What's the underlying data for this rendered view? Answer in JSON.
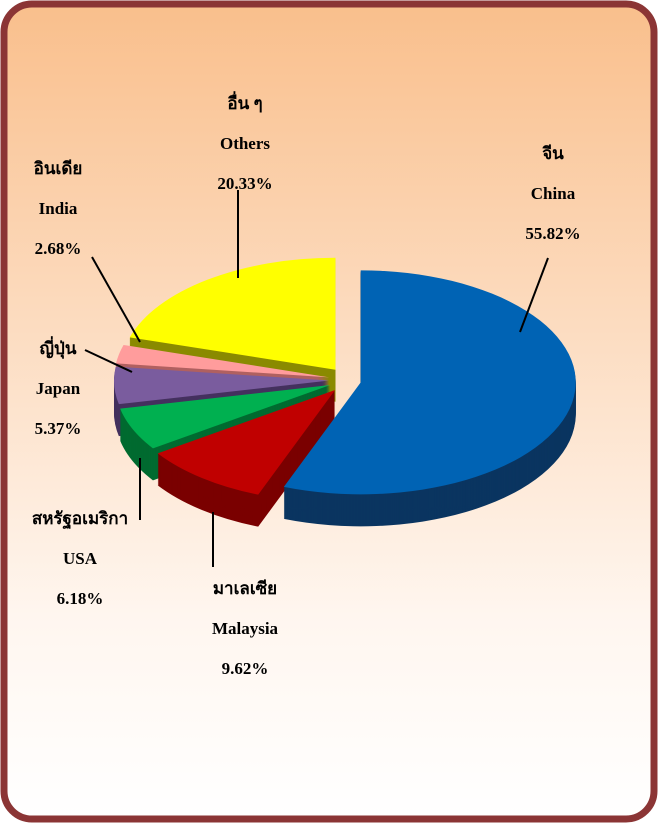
{
  "chart_data": {
    "type": "pie",
    "categories_thai": [
      "จีน",
      "มาเลเซีย",
      "สหรัฐอเมริกา",
      "ญี่ปุ่น",
      "อินเดีย",
      "อื่น ๆ"
    ],
    "categories": [
      "China",
      "Malaysia",
      "USA",
      "Japan",
      "India",
      "Others"
    ],
    "values": [
      55.82,
      9.62,
      6.18,
      5.37,
      2.68,
      20.33
    ],
    "value_labels": [
      "55.82%",
      "9.62%",
      "6.18%",
      "5.37%",
      "2.68%",
      "20.33%"
    ],
    "colors": [
      "#0063b4",
      "#c00000",
      "#00b050",
      "#7a5c9e",
      "#ff9c9c",
      "#ffff00"
    ],
    "side_colors": [
      "#0a3560",
      "#7a0000",
      "#006b30",
      "#44305e",
      "#b06060",
      "#8a8a00"
    ]
  }
}
